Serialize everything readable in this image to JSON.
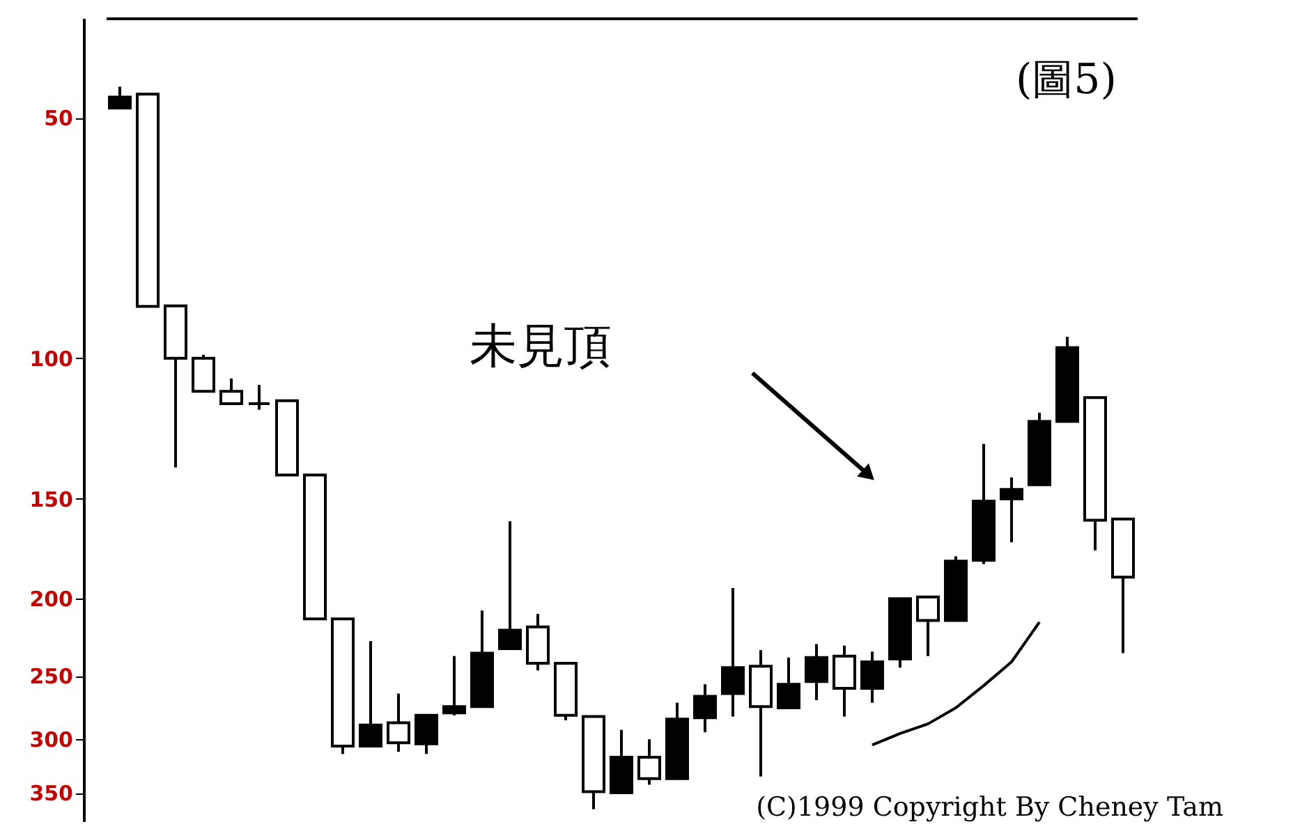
{
  "chart_data": {
    "type": "candlestick",
    "categories": [
      null,
      null,
      null,
      null,
      null,
      null,
      null,
      null,
      null,
      null,
      null,
      null,
      null,
      null,
      null,
      null,
      null,
      null,
      null,
      null,
      null,
      null,
      null,
      null,
      null,
      null,
      null,
      null,
      null,
      null,
      null,
      null,
      null,
      null,
      null,
      null,
      null
    ],
    "ohlc": [
      [
        48.6,
        48.6,
        45.7,
        47.1
      ],
      [
        46.7,
        86.1,
        46.7,
        86.1
      ],
      [
        86,
        137,
        86,
        100
      ],
      [
        100,
        110,
        99,
        110
      ],
      [
        110,
        114,
        106,
        114
      ],
      [
        114,
        116,
        108,
        114
      ],
      [
        113,
        140,
        113,
        140
      ],
      [
        140,
        212,
        140,
        212
      ],
      [
        212,
        313,
        212,
        306
      ],
      [
        306,
        306,
        226,
        288
      ],
      [
        286,
        311,
        263,
        303
      ],
      [
        304,
        313,
        280,
        280
      ],
      [
        278,
        280,
        236,
        273
      ],
      [
        273,
        274,
        207,
        234
      ],
      [
        231,
        231,
        160,
        219
      ],
      [
        217,
        246,
        209,
        241
      ],
      [
        241,
        284,
        241,
        280
      ],
      [
        281,
        367,
        281,
        349
      ],
      [
        350,
        350,
        292,
        316
      ],
      [
        316,
        342,
        300,
        336
      ],
      [
        336,
        336,
        270,
        283
      ],
      [
        282,
        294,
        256,
        265
      ],
      [
        263,
        281,
        194,
        244
      ],
      [
        243,
        334,
        232,
        273
      ],
      [
        274,
        275,
        237,
        256
      ],
      [
        254,
        268,
        228,
        237
      ],
      [
        236,
        281,
        229,
        259
      ],
      [
        259,
        270,
        233,
        240
      ],
      [
        238,
        244,
        200,
        200
      ],
      [
        199,
        236,
        199,
        213
      ],
      [
        213,
        213,
        177,
        179.5
      ],
      [
        179,
        181,
        128,
        151
      ],
      [
        150,
        170,
        141,
        146
      ],
      [
        144,
        144,
        117,
        120
      ],
      [
        120,
        120,
        94,
        97
      ],
      [
        112,
        174,
        112,
        159.5
      ],
      [
        159,
        234,
        159,
        188
      ]
    ],
    "series": [
      {
        "type": "line",
        "color": "#000000",
        "values": [
          null,
          null,
          null,
          null,
          null,
          null,
          null,
          null,
          null,
          null,
          null,
          null,
          null,
          null,
          null,
          null,
          null,
          null,
          null,
          null,
          null,
          null,
          null,
          null,
          null,
          null,
          null,
          305,
          295,
          287,
          274,
          257,
          240,
          214,
          null,
          null,
          null
        ]
      }
    ],
    "ylim": [
      380,
      37.5
    ],
    "yticks": [
      50,
      100,
      150,
      200,
      250,
      300,
      350
    ],
    "log": true,
    "tick_labels": "y",
    "annotations": [
      "(圖5)",
      "未見頂",
      "(C)1999 Copyright By Cheney Tam"
    ]
  }
}
